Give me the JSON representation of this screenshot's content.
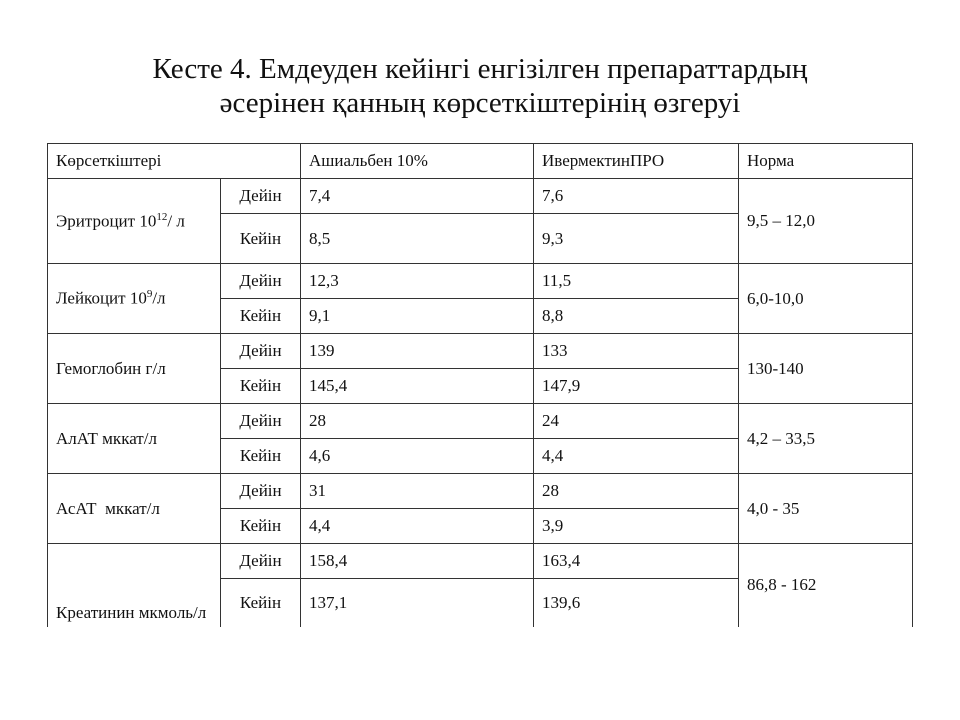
{
  "title": {
    "line1": "Кесте 4. Емдеуден кейінгі енгізілген препараттардың",
    "line2": "әсерінен қанның көрсеткіштерінің өзгеруі"
  },
  "table": {
    "header": [
      "Көрсеткіштері",
      "Ашиальбен 10%",
      "ИвермектинПРО",
      "Норма"
    ],
    "rows": [
      {
        "name": {
          "text": "Эритроцит 10",
          "sup": "12",
          "tail": "/ л"
        },
        "before_label": "Дейін",
        "after_label": "Кейін",
        "before": [
          "7,4",
          "7,6"
        ],
        "after": [
          "8,5",
          "9,3"
        ],
        "norm": "9,5 – 12,0"
      },
      {
        "name": {
          "text": "Лейкоцит 10",
          "sup": "9",
          "tail": "/л"
        },
        "before_label": "Дейін",
        "after_label": "Кейін",
        "before": [
          "12,3",
          "11,5"
        ],
        "after": [
          "9,1",
          "8,8"
        ],
        "norm": "6,0-10,0"
      },
      {
        "name": "Гемоглобин г/л",
        "before_label": "Дейін",
        "after_label": "Кейін",
        "before": [
          "139",
          "133"
        ],
        "after": [
          "145,4",
          "147,9"
        ],
        "norm": "130-140"
      },
      {
        "name": "АлАТ мккат/л",
        "before_label": "Дейін",
        "after_label": "Кейін",
        "before": [
          "28",
          "24"
        ],
        "after": [
          "4,6",
          "4,4"
        ],
        "norm": "4,2 – 33,5"
      },
      {
        "name": "АсАТ  мккат/л",
        "before_label": "Дейін",
        "after_label": "Кейін",
        "before": [
          "31",
          "28"
        ],
        "after": [
          "4,4",
          "3,9"
        ],
        "norm": "4,0 - 35"
      },
      {
        "name": "Креатинин мкмоль/л",
        "before_label": "Дейін",
        "after_label": "Кейін",
        "before": [
          "158,4",
          "163,4"
        ],
        "after": [
          "137,1",
          "139,6"
        ],
        "norm": "86,8 - 162"
      }
    ]
  }
}
